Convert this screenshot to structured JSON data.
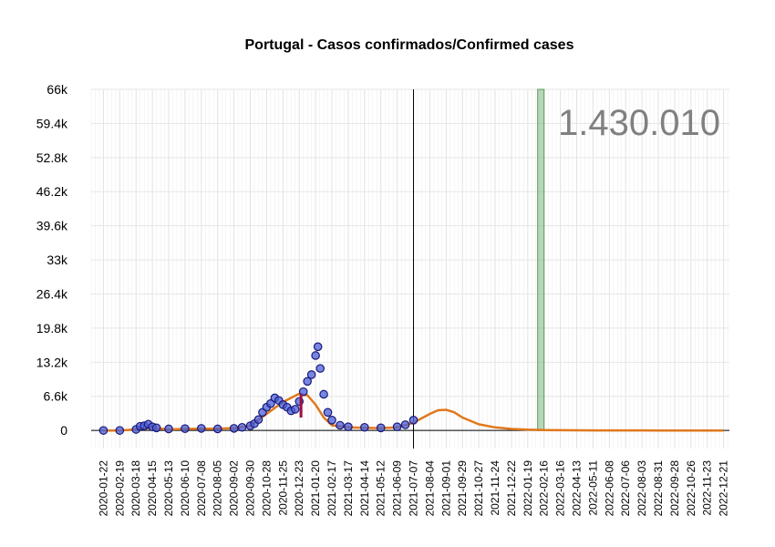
{
  "chart_data": {
    "type": "scatter",
    "title": "Portugal - Casos confirmados/Confirmed cases",
    "xlabel": "",
    "ylabel": "",
    "total_label": "1.430.010",
    "x_range": [
      "2020-01-01",
      "2022-12-31"
    ],
    "ylim": [
      -3500,
      66000
    ],
    "grid": true,
    "y_ticks": [
      {
        "value": 0,
        "label": "0"
      },
      {
        "value": 6600,
        "label": "6.6k"
      },
      {
        "value": 13200,
        "label": "13.2k"
      },
      {
        "value": 19800,
        "label": "19.8k"
      },
      {
        "value": 26400,
        "label": "26.4k"
      },
      {
        "value": 33000,
        "label": "33k"
      },
      {
        "value": 39600,
        "label": "39.6k"
      },
      {
        "value": 46200,
        "label": "46.2k"
      },
      {
        "value": 52800,
        "label": "52.8k"
      },
      {
        "value": 59400,
        "label": "59.4k"
      },
      {
        "value": 66000,
        "label": "66k"
      }
    ],
    "x_tick_labels": [
      "2020-01-22",
      "2020-02-19",
      "2020-03-18",
      "2020-04-15",
      "2020-05-13",
      "2020-06-10",
      "2020-07-08",
      "2020-08-05",
      "2020-09-02",
      "2020-09-30",
      "2020-10-28",
      "2020-11-25",
      "2020-12-23",
      "2021-01-20",
      "2021-02-17",
      "2021-03-17",
      "2021-04-14",
      "2021-05-12",
      "2021-06-09",
      "2021-07-07",
      "2021-08-04",
      "2021-09-01",
      "2021-09-29",
      "2021-10-27",
      "2021-11-24",
      "2021-12-22",
      "2022-01-19",
      "2022-02-16",
      "2022-03-16",
      "2022-04-13",
      "2022-05-11",
      "2022-06-08",
      "2022-07-06",
      "2022-08-03",
      "2022-08-31",
      "2022-09-28",
      "2022-10-26",
      "2022-11-23",
      "2022-12-21"
    ],
    "markers": {
      "today_line": "2021-07-07",
      "highlight_band": [
        "2022-02-05",
        "2022-02-16"
      ]
    },
    "series": [
      {
        "kind": "points",
        "x": [
          "2020-01-22",
          "2020-02-19",
          "2020-03-18",
          "2020-03-25",
          "2020-04-01",
          "2020-04-08",
          "2020-04-15",
          "2020-04-22",
          "2020-05-13",
          "2020-06-10",
          "2020-07-08",
          "2020-08-05",
          "2020-09-02",
          "2020-09-16",
          "2020-09-30",
          "2020-10-07",
          "2020-10-14",
          "2020-10-21",
          "2020-10-28",
          "2020-11-04",
          "2020-11-11",
          "2020-11-18",
          "2020-11-25",
          "2020-12-02",
          "2020-12-09",
          "2020-12-16",
          "2020-12-23",
          "2020-12-30",
          "2021-01-06",
          "2021-01-13",
          "2021-01-20",
          "2021-01-24",
          "2021-01-28",
          "2021-02-03",
          "2021-02-10",
          "2021-02-17",
          "2021-03-03",
          "2021-03-17",
          "2021-04-14",
          "2021-05-12",
          "2021-06-09",
          "2021-06-23",
          "2021-07-07"
        ],
        "values": [
          0,
          0,
          200,
          800,
          900,
          1200,
          700,
          500,
          300,
          350,
          400,
          300,
          400,
          600,
          900,
          1300,
          2100,
          3500,
          4500,
          5200,
          6300,
          5800,
          5000,
          4500,
          3800,
          4100,
          5600,
          7500,
          9500,
          10800,
          14500,
          16200,
          12000,
          7000,
          3500,
          2000,
          1000,
          700,
          600,
          500,
          700,
          1100,
          2000
        ],
        "color": "#4a5fd8"
      },
      {
        "kind": "fit",
        "x": [
          "2020-01-22",
          "2020-02-19",
          "2020-03-18",
          "2020-04-15",
          "2020-05-13",
          "2020-06-10",
          "2020-07-08",
          "2020-08-05",
          "2020-09-02",
          "2020-09-30",
          "2020-10-28",
          "2020-11-25",
          "2020-12-23",
          "2021-01-06",
          "2021-01-20",
          "2021-02-03",
          "2021-02-17",
          "2021-03-17",
          "2021-04-14",
          "2021-05-12",
          "2021-06-09",
          "2021-07-07",
          "2021-08-04",
          "2021-08-18",
          "2021-09-01",
          "2021-09-15",
          "2021-09-29",
          "2021-10-27",
          "2021-11-24",
          "2021-12-22",
          "2022-01-19",
          "2022-02-16",
          "2022-03-16",
          "2022-04-13",
          "2022-05-11",
          "2022-06-08",
          "2022-07-06",
          "2022-08-03",
          "2022-08-31",
          "2022-09-28",
          "2022-10-26",
          "2022-11-23",
          "2022-12-21"
        ],
        "values": [
          0,
          0,
          200,
          500,
          200,
          300,
          350,
          350,
          450,
          900,
          3200,
          5500,
          7100,
          6800,
          5000,
          2500,
          1000,
          600,
          500,
          450,
          600,
          1500,
          3200,
          3900,
          4000,
          3500,
          2500,
          1200,
          600,
          300,
          150,
          80,
          40,
          20,
          10,
          5,
          3,
          2,
          1,
          0,
          0,
          0,
          0
        ],
        "color": "#e0781c"
      }
    ]
  }
}
